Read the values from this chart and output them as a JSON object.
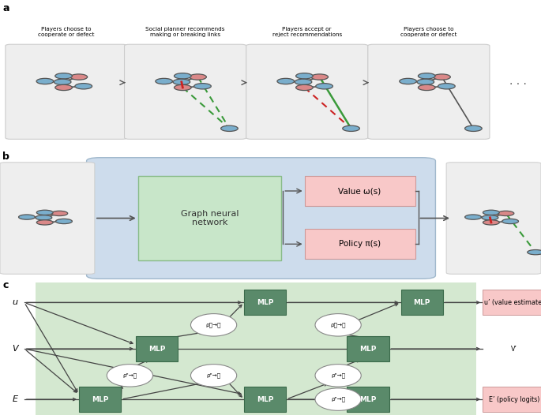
{
  "panel_a": {
    "captions": [
      "Players choose to\ncooperate or defect",
      "Social planner recommends\nmaking or breaking links",
      "Players accept or\nreject recommendations",
      "Players choose to\ncooperate or defect"
    ],
    "node_blue": "#7aaecc",
    "node_pink": "#d98888",
    "edge_color": "#555555",
    "green_dash": "#3a9a3a",
    "red_color": "#cc2222"
  },
  "panel_b": {
    "gnn_label": "Graph neural\nnetwork",
    "value_label": "Value ω(s)",
    "policy_label": "Policy π(s)"
  },
  "panel_c": {
    "inputs": [
      "u",
      "V",
      "E"
    ],
    "outputs": [
      "u’ (value estimate)",
      "V’",
      "E’ (policy logits)"
    ],
    "out_pink": [
      true,
      false,
      true
    ],
    "rho_labels_left": [
      "ρᵮ→ᵁ",
      "ρᵉ→ᵁ",
      "ρᵉ→ᵁ"
    ],
    "rho_labels_right": [
      "ρᵮ→ᵁ",
      "ρᵉ→ᵁ",
      "ρᵉ→ᵁ"
    ]
  }
}
